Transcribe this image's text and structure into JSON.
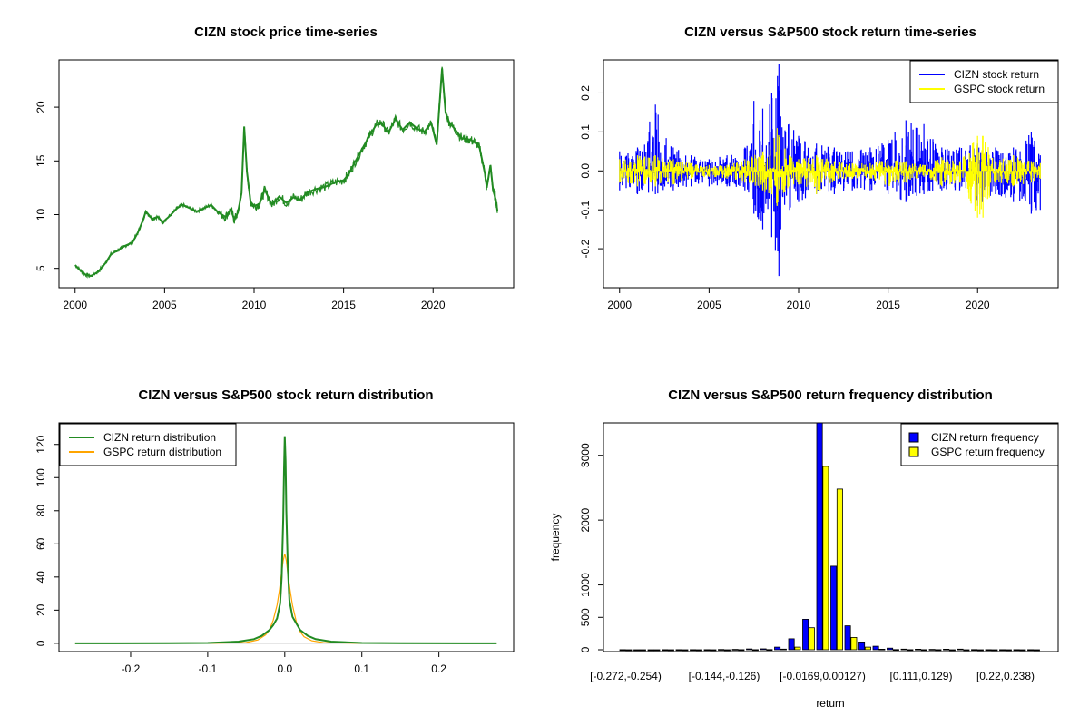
{
  "colors": {
    "cizn_price": "#228B22",
    "cizn_return": "#0000FF",
    "gspc_return": "#FFFF00",
    "cizn_density": "#228B22",
    "gspc_density": "#FFA500",
    "cizn_freq": "#0000FF",
    "gspc_freq": "#FFFF00"
  },
  "chart_data": [
    {
      "type": "line",
      "title": "CIZN stock price time-series",
      "xlabel": "",
      "ylabel": "",
      "xlim": [
        1999.1,
        2024.5
      ],
      "ylim": [
        3.2,
        24.4
      ],
      "x_ticks": [
        2000,
        2005,
        2010,
        2015,
        2020
      ],
      "y_ticks": [
        5,
        10,
        15,
        20
      ],
      "series": [
        {
          "name": "",
          "color_key": "cizn_price",
          "x": [
            2000.0,
            2000.3,
            2000.6,
            2000.9,
            2001.3,
            2001.7,
            2002.0,
            2002.4,
            2002.8,
            2003.2,
            2003.5,
            2003.8,
            2003.95,
            2004.3,
            2004.6,
            2004.9,
            2005.3,
            2005.7,
            2006.0,
            2006.4,
            2006.8,
            2007.2,
            2007.6,
            2008.0,
            2008.4,
            2008.7,
            2008.9,
            2009.1,
            2009.3,
            2009.45,
            2009.6,
            2009.8,
            2010.0,
            2010.3,
            2010.6,
            2011.0,
            2011.4,
            2011.8,
            2012.2,
            2012.6,
            2013.0,
            2013.5,
            2014.0,
            2014.5,
            2015.0,
            2015.3,
            2015.6,
            2016.0,
            2016.4,
            2016.8,
            2017.1,
            2017.5,
            2017.9,
            2018.3,
            2018.7,
            2019.1,
            2019.5,
            2019.9,
            2020.2,
            2020.5,
            2020.7,
            2020.9,
            2021.2,
            2021.6,
            2022.0,
            2022.3,
            2022.6,
            2022.9,
            2023.0,
            2023.2,
            2023.35,
            2023.5,
            2023.6
          ],
          "y": [
            5.3,
            4.8,
            4.4,
            4.3,
            4.7,
            5.5,
            6.3,
            6.7,
            7.1,
            7.4,
            8.3,
            9.5,
            10.3,
            9.6,
            9.8,
            9.3,
            9.9,
            10.6,
            10.9,
            10.6,
            10.3,
            10.6,
            10.9,
            10.2,
            9.8,
            10.5,
            9.5,
            10.2,
            12.0,
            18.2,
            14.0,
            11.2,
            10.8,
            11.0,
            12.3,
            10.9,
            11.7,
            11.1,
            11.6,
            11.4,
            12.1,
            12.4,
            12.6,
            13.0,
            13.2,
            13.8,
            14.8,
            16.0,
            17.2,
            18.3,
            18.6,
            17.6,
            18.9,
            17.9,
            18.6,
            18.0,
            17.7,
            18.5,
            16.5,
            23.6,
            19.5,
            18.6,
            18.0,
            17.1,
            17.0,
            16.8,
            16.2,
            13.8,
            12.5,
            14.6,
            12.3,
            11.4,
            10.3
          ]
        }
      ]
    },
    {
      "type": "line",
      "title": "CIZN versus S&P500 stock return time-series",
      "xlabel": "",
      "ylabel": "",
      "xlim": [
        1999.1,
        2024.5
      ],
      "ylim": [
        -0.3,
        0.285
      ],
      "x_ticks": [
        2000,
        2005,
        2010,
        2015,
        2020
      ],
      "y_ticks": [
        -0.2,
        -0.1,
        0.0,
        0.1,
        0.2
      ],
      "legend": {
        "position": "top-right",
        "entries": [
          "CIZN stock return",
          "GSPC stock return"
        ]
      },
      "series": [
        {
          "name": "CIZN stock return",
          "color_key": "cizn_return",
          "kind": "return-envelope",
          "x": [
            2000,
            2001,
            2002,
            2003,
            2004,
            2005,
            2006,
            2007,
            2007.5,
            2008,
            2008.5,
            2008.9,
            2009,
            2009.5,
            2010,
            2011,
            2012,
            2013,
            2014,
            2015,
            2016,
            2017,
            2018,
            2019,
            2020,
            2021,
            2022,
            2023,
            2023.5
          ],
          "ymax": [
            0.05,
            0.06,
            0.17,
            0.06,
            0.04,
            0.03,
            0.04,
            0.06,
            0.18,
            0.16,
            0.2,
            0.275,
            0.14,
            0.12,
            0.09,
            0.07,
            0.06,
            0.05,
            0.06,
            0.08,
            0.13,
            0.12,
            0.06,
            0.06,
            0.07,
            0.06,
            0.06,
            0.1,
            0.04
          ],
          "ymin": [
            -0.05,
            -0.06,
            -0.06,
            -0.05,
            -0.04,
            -0.04,
            -0.04,
            -0.05,
            -0.11,
            -0.15,
            -0.17,
            -0.27,
            -0.15,
            -0.1,
            -0.08,
            -0.06,
            -0.06,
            -0.05,
            -0.05,
            -0.06,
            -0.08,
            -0.06,
            -0.05,
            -0.05,
            -0.09,
            -0.06,
            -0.08,
            -0.11,
            -0.1
          ]
        },
        {
          "name": "GSPC stock return",
          "color_key": "gspc_return",
          "kind": "return-envelope",
          "x": [
            2000,
            2001,
            2002,
            2003,
            2004,
            2005,
            2006,
            2007,
            2008,
            2008.8,
            2009.5,
            2010,
            2011,
            2012,
            2013,
            2014,
            2015,
            2016,
            2017,
            2018,
            2019,
            2020,
            2020.3,
            2021,
            2022,
            2023,
            2023.5
          ],
          "ymax": [
            0.03,
            0.04,
            0.04,
            0.03,
            0.02,
            0.015,
            0.015,
            0.03,
            0.05,
            0.11,
            0.04,
            0.03,
            0.04,
            0.025,
            0.02,
            0.02,
            0.03,
            0.025,
            0.015,
            0.035,
            0.025,
            0.09,
            0.09,
            0.025,
            0.04,
            0.025,
            0.02
          ],
          "ymin": [
            -0.03,
            -0.04,
            -0.04,
            -0.035,
            -0.02,
            -0.015,
            -0.02,
            -0.03,
            -0.05,
            -0.09,
            -0.04,
            -0.035,
            -0.06,
            -0.025,
            -0.02,
            -0.02,
            -0.04,
            -0.03,
            -0.015,
            -0.04,
            -0.03,
            -0.12,
            -0.12,
            -0.03,
            -0.04,
            -0.03,
            -0.02
          ]
        }
      ]
    },
    {
      "type": "line",
      "title": "CIZN versus S&P500 stock return distribution",
      "xlabel": "",
      "ylabel": "",
      "xlim": [
        -0.293,
        0.297
      ],
      "ylim": [
        -5,
        133
      ],
      "x_ticks": [
        -0.2,
        -0.1,
        0.0,
        0.1,
        0.2
      ],
      "y_ticks": [
        0,
        20,
        40,
        60,
        80,
        100,
        120
      ],
      "legend": {
        "position": "top-left",
        "entries": [
          "CIZN return distribution",
          "GSPC return distribution"
        ]
      },
      "series": [
        {
          "name": "CIZN return distribution",
          "color_key": "cizn_density",
          "x": [
            -0.272,
            -0.15,
            -0.1,
            -0.06,
            -0.04,
            -0.03,
            -0.02,
            -0.015,
            -0.01,
            -0.006,
            -0.004,
            -0.002,
            -0.001,
            0.0,
            0.001,
            0.002,
            0.004,
            0.006,
            0.01,
            0.015,
            0.02,
            0.03,
            0.04,
            0.06,
            0.1,
            0.15,
            0.275
          ],
          "y": [
            0,
            0.05,
            0.2,
            1.0,
            2.5,
            4.5,
            8,
            11,
            15,
            24,
            40,
            75,
            105,
            125,
            110,
            80,
            45,
            26,
            16,
            12,
            8,
            4.5,
            2.5,
            1.0,
            0.2,
            0.05,
            0
          ]
        },
        {
          "name": "GSPC return distribution",
          "color_key": "gspc_density",
          "x": [
            -0.272,
            -0.1,
            -0.05,
            -0.035,
            -0.025,
            -0.02,
            -0.015,
            -0.01,
            -0.007,
            -0.004,
            -0.002,
            0.0,
            0.002,
            0.004,
            0.007,
            0.01,
            0.015,
            0.02,
            0.025,
            0.035,
            0.05,
            0.1,
            0.275
          ],
          "y": [
            0,
            0,
            0.5,
            2,
            5,
            8,
            14,
            23,
            32,
            43,
            50,
            54,
            50,
            42,
            32,
            23,
            13,
            7,
            4,
            1.5,
            0.4,
            0,
            0
          ]
        }
      ]
    },
    {
      "type": "bar",
      "title": "CIZN versus S&P500 return frequency distribution",
      "xlabel": "return",
      "ylabel": "frequency",
      "ylim": [
        0,
        3500
      ],
      "y_ticks": [
        0,
        500,
        1000,
        2000,
        3000
      ],
      "x_tick_labels": [
        {
          "index": 0,
          "label": "[-0.272,-0.254)"
        },
        {
          "index": 7,
          "label": "[-0.144,-0.126)"
        },
        {
          "index": 14,
          "label": "[-0.0169,0.00127)"
        },
        {
          "index": 21,
          "label": "[0.111,0.129)"
        },
        {
          "index": 27,
          "label": "[0.22,0.238)"
        }
      ],
      "legend": {
        "position": "top-right",
        "entries": [
          "CIZN return frequency",
          "GSPC return frequency"
        ]
      },
      "categories_count": 30,
      "series": [
        {
          "name": "CIZN return frequency",
          "color_key": "cizn_freq",
          "values": [
            1,
            0,
            0,
            1,
            1,
            2,
            2,
            4,
            6,
            12,
            14,
            40,
            170,
            470,
            3500,
            1290,
            370,
            120,
            55,
            25,
            10,
            8,
            6,
            8,
            10,
            3,
            1,
            1,
            1,
            1
          ]
        },
        {
          "name": "GSPC return frequency",
          "color_key": "gspc_freq",
          "values": [
            0,
            0,
            0,
            0,
            0,
            0,
            0,
            0,
            1,
            2,
            3,
            10,
            40,
            340,
            2830,
            2480,
            190,
            40,
            8,
            3,
            2,
            1,
            1,
            0,
            0,
            0,
            0,
            0,
            0,
            0
          ]
        }
      ]
    }
  ]
}
